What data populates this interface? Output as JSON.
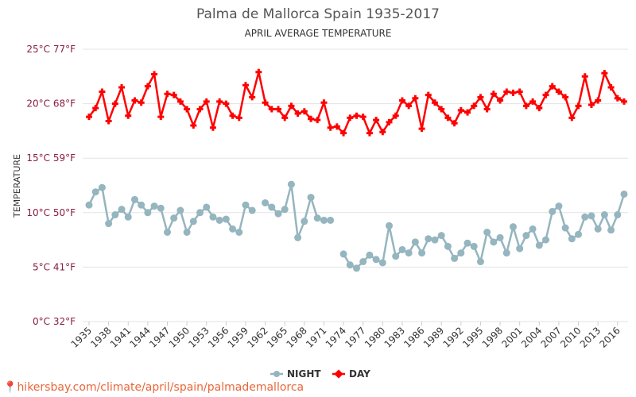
{
  "chart_data": {
    "type": "line",
    "title": "Palma de Mallorca Spain 1935-2017",
    "subtitle": "APRIL AVERAGE TEMPERATURE",
    "ylabel": "TEMPERATURE",
    "xlabel": "",
    "ylim": [
      0,
      25
    ],
    "yticks": [
      {
        "v": 0,
        "label": "0°C 32°F"
      },
      {
        "v": 5,
        "label": "5°C 41°F"
      },
      {
        "v": 10,
        "label": "10°C 50°F"
      },
      {
        "v": 15,
        "label": "15°C 59°F"
      },
      {
        "v": 20,
        "label": "20°C 68°F"
      },
      {
        "v": 25,
        "label": "25°C 77°F"
      }
    ],
    "xticks": [
      1935,
      1938,
      1941,
      1944,
      1947,
      1950,
      1953,
      1956,
      1959,
      1962,
      1965,
      1968,
      1971,
      1974,
      1977,
      1980,
      1983,
      1986,
      1989,
      1992,
      1995,
      1998,
      2001,
      2004,
      2007,
      2010,
      2013,
      2016
    ],
    "x_start": 1935,
    "x_end": 2017,
    "grid": true,
    "legend": "bottom",
    "series": [
      {
        "name": "NIGHT",
        "color": "#95b5bf",
        "values": [
          10.7,
          11.9,
          12.3,
          9.0,
          9.8,
          10.3,
          9.6,
          11.2,
          10.7,
          10.0,
          10.6,
          10.4,
          8.2,
          9.5,
          10.2,
          8.2,
          9.2,
          10.0,
          10.5,
          9.6,
          9.3,
          9.4,
          8.5,
          8.2,
          10.7,
          10.2,
          null,
          10.9,
          10.5,
          9.9,
          10.3,
          12.6,
          7.7,
          9.2,
          11.4,
          9.5,
          9.3,
          9.3,
          null,
          6.2,
          5.2,
          4.9,
          5.5,
          6.1,
          5.7,
          5.4,
          8.8,
          6.0,
          6.6,
          6.3,
          7.3,
          6.3,
          7.6,
          7.5,
          7.9,
          6.9,
          5.8,
          6.3,
          7.2,
          6.9,
          5.5,
          8.2,
          7.3,
          7.7,
          6.3,
          8.7,
          6.7,
          7.9,
          8.5,
          7.0,
          7.5,
          10.1,
          10.6,
          8.6,
          7.6,
          8.0,
          9.6,
          9.7,
          8.5,
          9.8,
          8.4,
          9.8,
          11.7
        ]
      },
      {
        "name": "DAY",
        "color": "#ff0000",
        "values": [
          18.8,
          19.6,
          21.1,
          18.4,
          20.0,
          21.5,
          18.9,
          20.3,
          20.1,
          21.6,
          22.7,
          18.8,
          20.9,
          20.8,
          20.2,
          19.5,
          18.0,
          19.5,
          20.2,
          17.8,
          20.2,
          20.0,
          18.9,
          18.7,
          21.7,
          20.6,
          22.9,
          20.1,
          19.5,
          19.5,
          18.7,
          19.8,
          19.1,
          19.3,
          18.6,
          18.5,
          20.1,
          17.8,
          17.9,
          17.3,
          18.7,
          18.9,
          18.8,
          17.3,
          18.5,
          17.4,
          18.3,
          18.9,
          20.3,
          19.8,
          20.5,
          17.7,
          20.8,
          20.1,
          19.5,
          18.7,
          18.2,
          19.4,
          19.2,
          19.8,
          20.6,
          19.5,
          20.9,
          20.3,
          21.1,
          21.0,
          21.1,
          19.8,
          20.2,
          19.6,
          20.8,
          21.6,
          21.1,
          20.6,
          18.7,
          19.8,
          22.5,
          19.9,
          20.3,
          22.8,
          21.5,
          20.5,
          20.2
        ]
      }
    ]
  },
  "footer": "hikersbay.com/climate/april/spain/palmademallorca"
}
